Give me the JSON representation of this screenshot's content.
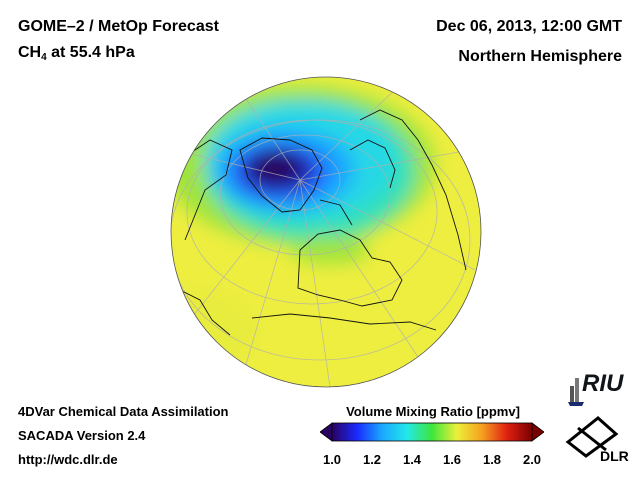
{
  "header": {
    "product_title": "GOME–2 / MetOp Forecast",
    "species": "CH",
    "species_sub": "4",
    "level": " at 55.4 hPa",
    "datetime": "Dec 06, 2013, 12:00 GMT",
    "region": "Northern Hemisphere"
  },
  "footer": {
    "line1": "4DVar Chemical Data Assimilation",
    "line2": "SACADA Version 2.4",
    "line3": "http://wdc.dlr.de"
  },
  "colorbar": {
    "title": "Volume Mixing Ratio [ppmv]",
    "min": 1.0,
    "max": 2.0,
    "ticks": [
      "1.0",
      "1.2",
      "1.4",
      "1.6",
      "1.8",
      "2.0"
    ],
    "colors": [
      "#2a0060",
      "#1a2aff",
      "#1aa8ff",
      "#22e8e8",
      "#3ee63c",
      "#eef03a",
      "#f5a020",
      "#e02010",
      "#7a0000"
    ]
  },
  "logos": {
    "riu": "RIU",
    "dlr": "DLR"
  },
  "map_data": {
    "projection": "orthographic, Northern Hemisphere",
    "field": "CH4 volume mixing ratio",
    "low_center": "Greenland / Arctic",
    "low_value_approx": 1.0,
    "background_value_approx": 1.6
  }
}
